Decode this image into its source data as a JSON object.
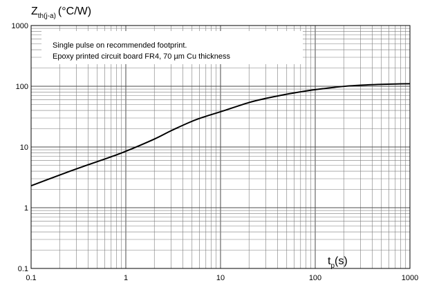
{
  "chart_data": {
    "type": "line",
    "x_scale": "log",
    "y_scale": "log",
    "xlim": [
      0.1,
      1000
    ],
    "ylim": [
      0.1,
      1000
    ],
    "grid": true,
    "y_title": {
      "main": "Z",
      "sub": "th(j-a)",
      "unit": "(°C/W)"
    },
    "x_title": {
      "main": "t",
      "sub": "p",
      "unit": "(s)"
    },
    "xticks": [
      "0.1",
      "1",
      "10",
      "100",
      "1000"
    ],
    "yticks": [
      "0.1",
      "1",
      "10",
      "100",
      "1000"
    ],
    "annotations": [
      "Single pulse on recommended footprint.",
      "Epoxy printed circuit board FR4, 70 µm Cu thickness"
    ],
    "series": [
      {
        "x": [
          0.1,
          0.2,
          0.3,
          0.5,
          0.7,
          1,
          2,
          3,
          5,
          7,
          10,
          20,
          30,
          50,
          70,
          100,
          150,
          200,
          300,
          500,
          700,
          1000
        ],
        "y": [
          2.3,
          3.45,
          4.35,
          5.75,
          6.9,
          8.5,
          13.5,
          18.5,
          26.5,
          32,
          38,
          54,
          63,
          74,
          81,
          88,
          95,
          99.5,
          104,
          107.5,
          109,
          110
        ]
      }
    ]
  }
}
